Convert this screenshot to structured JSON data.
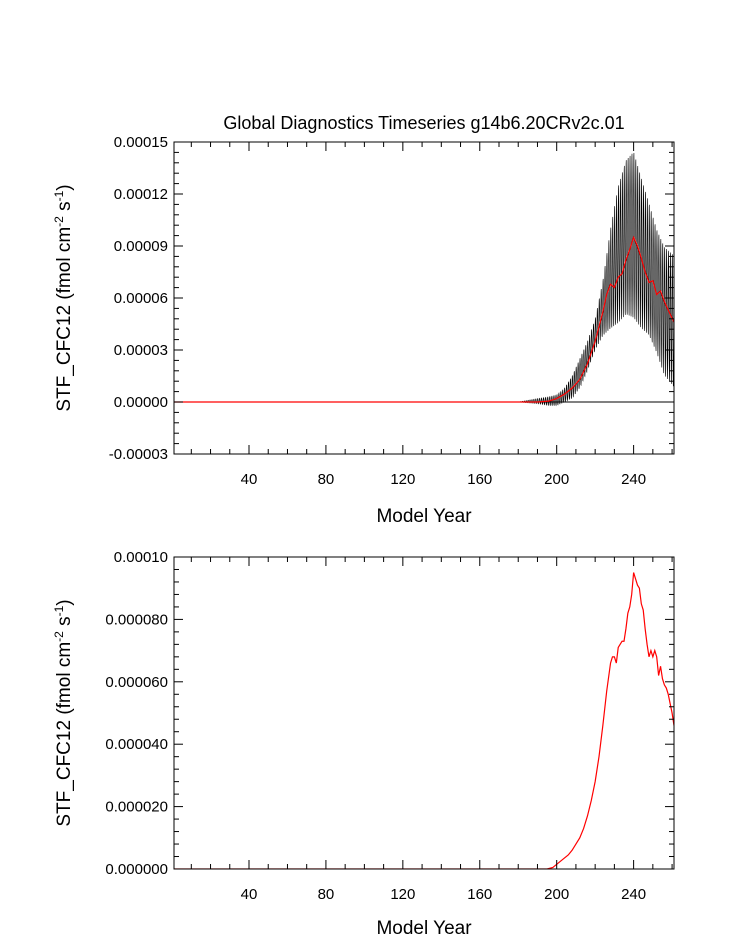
{
  "chart_data": [
    {
      "type": "line",
      "title": "Global Diagnostics Timeseries g14b6.20CRv2c.01",
      "xlabel": "Model Year",
      "ylabel": "STF_CFC12 (fmol cm",
      "ylabel_sup1": "-2",
      "ylabel_mid": " s",
      "ylabel_sup2": "-1",
      "ylabel_end": ")",
      "xlim": [
        1,
        261
      ],
      "ylim": [
        -3e-05,
        0.00015
      ],
      "xticks": [
        40,
        80,
        120,
        160,
        200,
        240
      ],
      "xtick_labels": [
        "40",
        "80",
        "120",
        "160",
        "200",
        "240"
      ],
      "yticks": [
        -3e-05,
        0,
        3e-05,
        6e-05,
        9e-05,
        0.00012,
        0.00015
      ],
      "ytick_labels": [
        "-0.00003",
        "0.00000",
        "0.00003",
        "0.00006",
        "0.00009",
        "0.00012",
        "0.00015"
      ],
      "reference_line": 0,
      "series": [
        {
          "color": "#000000",
          "style": "monthly, seasonal oscillation",
          "x": [
            1,
            180,
            190,
            196,
            200,
            204,
            208,
            212,
            216,
            220,
            224,
            228,
            232,
            236,
            240,
            244,
            248,
            252,
            256,
            261
          ],
          "y_min": [
            0,
            0,
            -1e-06,
            -2e-06,
            -2e-06,
            0,
            2e-06,
            8e-06,
            1.8e-05,
            3e-05,
            3.8e-05,
            4.2e-05,
            4.5e-05,
            5e-05,
            4.8e-05,
            4.2e-05,
            3.8e-05,
            2.8e-05,
            1.5e-05,
            8e-06
          ],
          "y_max": [
            0,
            0,
            2e-06,
            3e-06,
            4e-06,
            8e-06,
            1.5e-05,
            2.5e-05,
            3.5e-05,
            4.8e-05,
            7e-05,
            0.0001,
            0.000125,
            0.00014,
            0.000145,
            0.00013,
            0.000115,
            0.0001,
            9e-05,
            8.5e-05
          ]
        },
        {
          "color": "#ff0000",
          "style": "annual mean",
          "x": [
            1,
            190,
            196,
            200,
            204,
            208,
            212,
            216,
            220,
            224,
            226,
            228,
            230,
            232,
            234,
            236,
            238,
            240,
            242,
            244,
            246,
            248,
            250,
            252,
            254,
            256,
            258,
            261
          ],
          "y": [
            0,
            0,
            5e-07,
            2e-06,
            4.5e-06,
            8e-06,
            1.3e-05,
            2.2e-05,
            3.5e-05,
            5.2e-05,
            6.2e-05,
            6.8e-05,
            6.6e-05,
            7.2e-05,
            7.4e-05,
            8.2e-05,
            8.8e-05,
            9.5e-05,
            9e-05,
            8.3e-05,
            7.5e-05,
            6.9e-05,
            7e-05,
            6.2e-05,
            6.4e-05,
            5.8e-05,
            5.3e-05,
            4.6e-05
          ]
        }
      ]
    },
    {
      "type": "line",
      "xlabel": "Model Year",
      "ylabel": "STF_CFC12 (fmol cm",
      "ylabel_sup1": "-2",
      "ylabel_mid": " s",
      "ylabel_sup2": "-1",
      "ylabel_end": ")",
      "xlim": [
        1,
        261
      ],
      "ylim": [
        0,
        0.0001
      ],
      "xticks": [
        40,
        80,
        120,
        160,
        200,
        240
      ],
      "xtick_labels": [
        "40",
        "80",
        "120",
        "160",
        "200",
        "240"
      ],
      "yticks": [
        0,
        2e-05,
        4e-05,
        6e-05,
        8e-05,
        0.0001
      ],
      "ytick_labels": [
        "0.000000",
        "0.000020",
        "0.000040",
        "0.000060",
        "0.000080",
        "0.00010"
      ],
      "series": [
        {
          "color": "#ff0000",
          "style": "annual mean",
          "x": [
            1,
            195,
            198,
            200,
            202,
            204,
            206,
            208,
            210,
            212,
            214,
            216,
            218,
            220,
            222,
            224,
            226,
            228,
            229,
            230,
            231,
            232,
            233,
            234,
            235,
            236,
            237,
            238,
            239,
            240,
            241,
            242,
            243,
            244,
            245,
            246,
            247,
            248,
            249,
            250,
            251,
            252,
            253,
            254,
            255,
            256,
            257,
            258,
            259,
            260,
            261
          ],
          "y": [
            0,
            0,
            5e-07,
            1.5e-06,
            2.5e-06,
            3.5e-06,
            4.5e-06,
            6e-06,
            8e-06,
            1e-05,
            1.3e-05,
            1.7e-05,
            2.2e-05,
            2.8e-05,
            3.6e-05,
            4.6e-05,
            5.7e-05,
            6.6e-05,
            6.8e-05,
            6.8e-05,
            6.6e-05,
            7.1e-05,
            7.2e-05,
            7.3e-05,
            7.3e-05,
            7.7e-05,
            8.2e-05,
            8.4e-05,
            8.8e-05,
            9.5e-05,
            9.3e-05,
            9.1e-05,
            9e-05,
            8.5e-05,
            8.3e-05,
            7.7e-05,
            7.2e-05,
            6.8e-05,
            7e-05,
            6.8e-05,
            7e-05,
            6.8e-05,
            6.2e-05,
            6.5e-05,
            6.1e-05,
            5.9e-05,
            5.8e-05,
            5.6e-05,
            5.3e-05,
            5e-05,
            4.6e-05
          ]
        }
      ]
    }
  ]
}
